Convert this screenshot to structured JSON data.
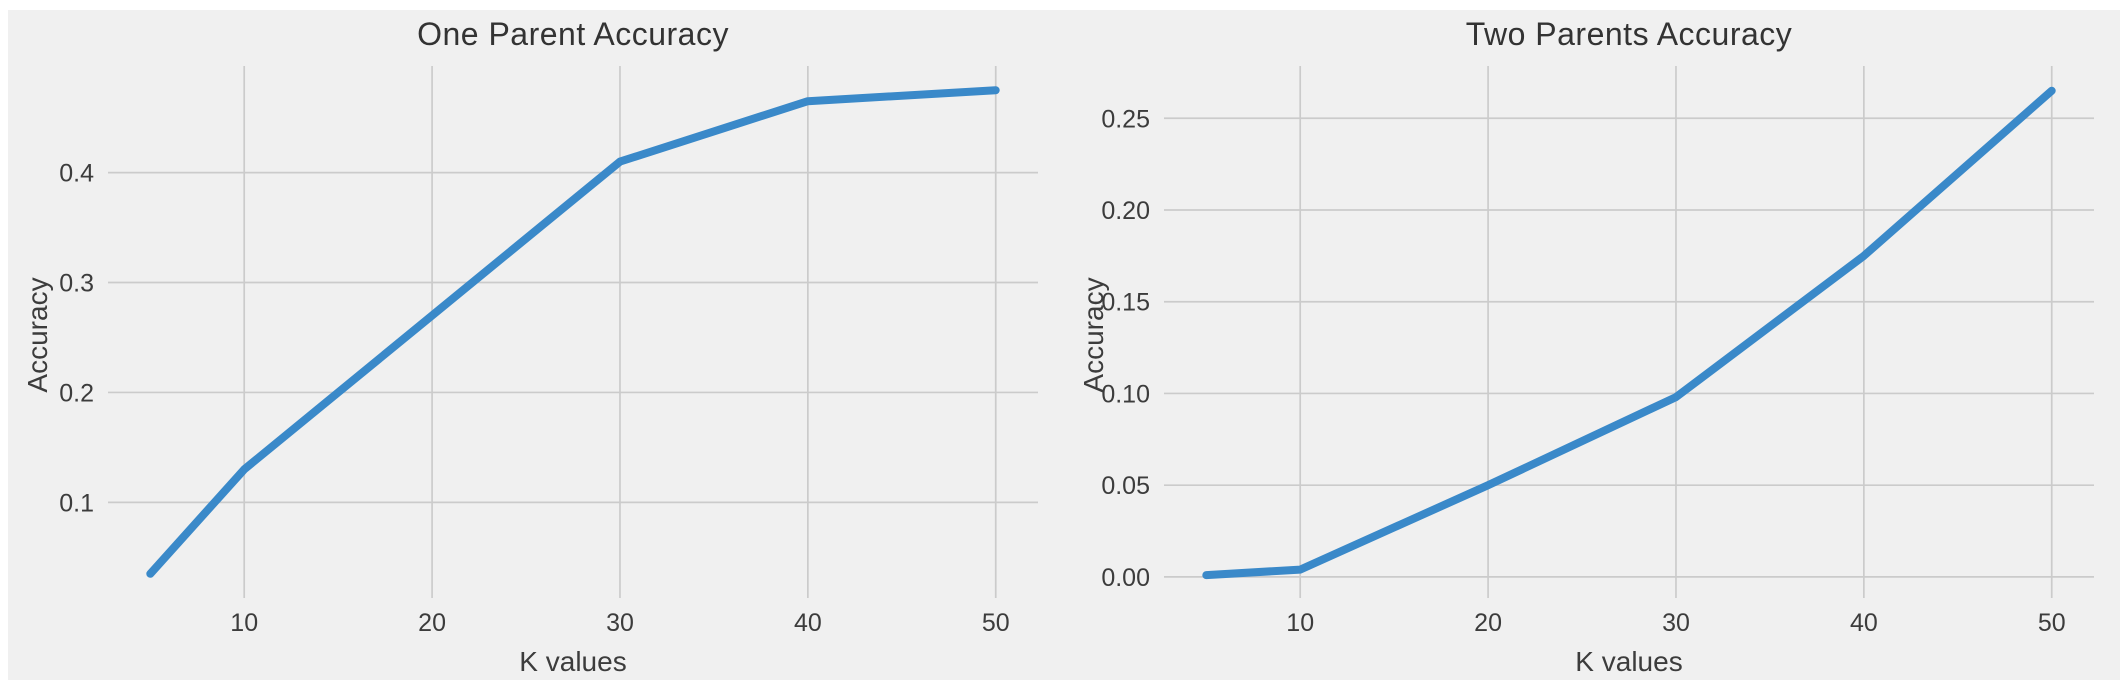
{
  "style": {
    "accent_line_color": "#3a89c9",
    "grid_color": "#cbcbcb",
    "text_color": "#3c3c3c",
    "figure_background": "#f0f0f0",
    "page_background": "#ffffff"
  },
  "chart_data": [
    {
      "type": "line",
      "title": "One Parent Accuracy",
      "xlabel": "K values",
      "ylabel": "Accuracy",
      "x": [
        5,
        10,
        20,
        30,
        40,
        50
      ],
      "values": [
        0.035,
        0.13,
        0.27,
        0.41,
        0.465,
        0.475
      ],
      "series": [
        {
          "name": "accuracy",
          "values": [
            0.035,
            0.13,
            0.27,
            0.41,
            0.465,
            0.475
          ]
        }
      ],
      "xticks": [
        10,
        20,
        30,
        40,
        50
      ],
      "xtick_labels": [
        "10",
        "20",
        "30",
        "40",
        "50"
      ],
      "yticks": [
        0.1,
        0.2,
        0.3,
        0.4
      ],
      "ytick_labels": [
        "0.1",
        "0.2",
        "0.3",
        "0.4"
      ],
      "xlim": [
        2.75,
        52.25
      ],
      "ylim": [
        0.013,
        0.497
      ],
      "grid": true,
      "legend": "none"
    },
    {
      "type": "line",
      "title": "Two Parents Accuracy",
      "xlabel": "K values",
      "ylabel": "Accuracy",
      "x": [
        5,
        10,
        20,
        30,
        40,
        50
      ],
      "values": [
        0.001,
        0.004,
        0.05,
        0.098,
        0.175,
        0.265
      ],
      "series": [
        {
          "name": "accuracy",
          "values": [
            0.001,
            0.004,
            0.05,
            0.098,
            0.175,
            0.265
          ]
        }
      ],
      "xticks": [
        10,
        20,
        30,
        40,
        50
      ],
      "xtick_labels": [
        "10",
        "20",
        "30",
        "40",
        "50"
      ],
      "yticks": [
        0.0,
        0.05,
        0.1,
        0.15,
        0.2,
        0.25
      ],
      "ytick_labels": [
        "0.00",
        "0.05",
        "0.10",
        "0.15",
        "0.20",
        "0.25"
      ],
      "xlim": [
        2.75,
        52.25
      ],
      "ylim": [
        -0.0115,
        0.2785
      ],
      "grid": true,
      "legend": "none"
    }
  ]
}
